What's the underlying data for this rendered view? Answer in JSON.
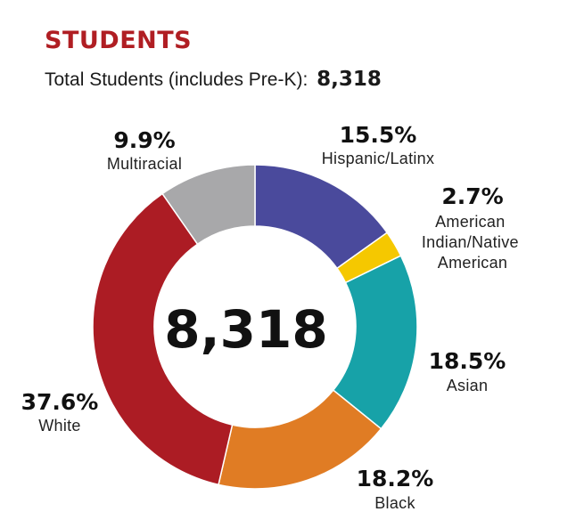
{
  "title": "STUDENTS",
  "subtitle": {
    "label": "Total Students (includes Pre-K):",
    "total": "8,318"
  },
  "chart_data": {
    "type": "pie",
    "variant": "donut",
    "center_label": "8,318",
    "slices": [
      {
        "name": "Hispanic/Latinx",
        "value": 15.5,
        "label": "15.5%",
        "color": "#4a4a9c"
      },
      {
        "name": "American Indian/Native American",
        "value": 2.7,
        "label": "2.7%",
        "color": "#f5c800"
      },
      {
        "name": "Asian",
        "value": 18.5,
        "label": "18.5%",
        "color": "#17a2a8"
      },
      {
        "name": "Black",
        "value": 18.2,
        "label": "18.2%",
        "color": "#e07c24"
      },
      {
        "name": "White",
        "value": 37.6,
        "label": "37.6%",
        "color": "#ac1c24"
      },
      {
        "name": "Multiracial",
        "value": 9.9,
        "label": "9.9%",
        "color": "#a8a8aa"
      }
    ],
    "legend": "outside labels"
  }
}
